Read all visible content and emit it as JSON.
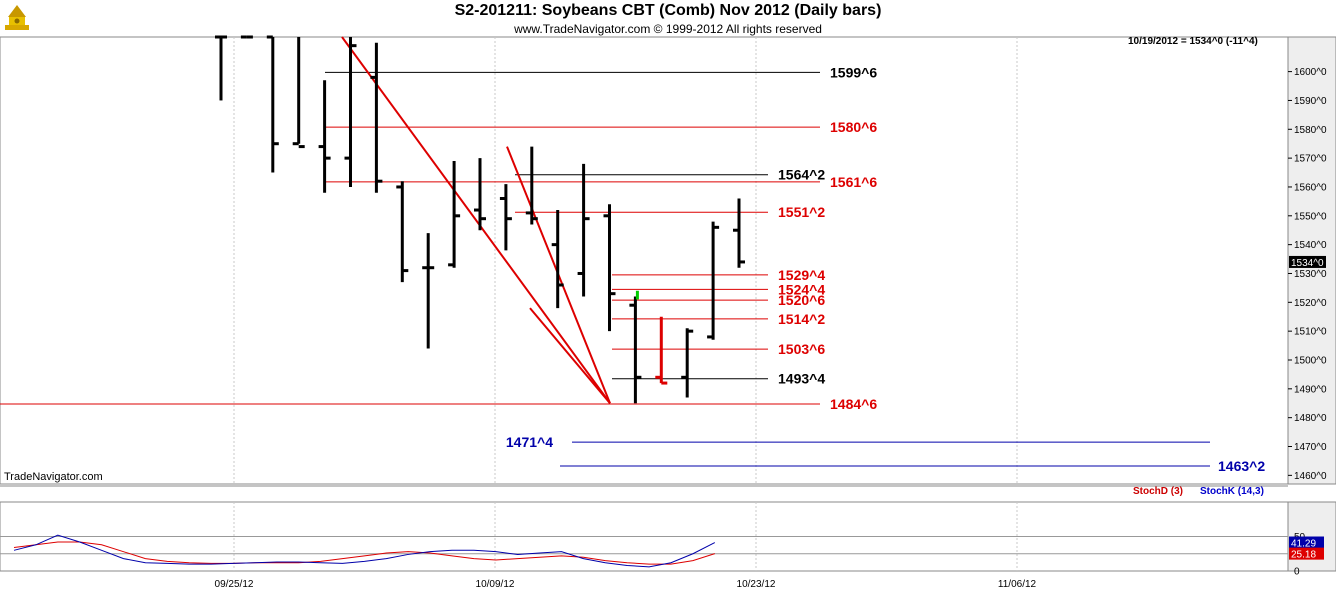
{
  "header": {
    "title": "S2-201211:  Soybeans CBT (Comb) Nov 2012  (Daily bars)",
    "subtitle": "www.TradeNavigator.com © 1999-2012 All rights reserved",
    "brand": "TradeNavigator.com",
    "readout": "10/19/2012 = 1534^0 (-11^4)"
  },
  "colors": {
    "red": "#dd0000",
    "blue": "#0000aa",
    "black": "#000000",
    "grid": "#c8c8c8",
    "axis_bg": "#eeeeee"
  },
  "chart_data": [
    {
      "type": "ohlc",
      "title": "S2-201211:  Soybeans CBT (Comb) Nov 2012  (Daily bars)",
      "x_labels": [
        "09/25/12",
        "10/09/12",
        "10/23/12",
        "11/06/12"
      ],
      "y_tick_labels": [
        "1460^0",
        "1470^0",
        "1480^0",
        "1490^0",
        "1500^0",
        "1510^0",
        "1520^0",
        "1530^0",
        "1540^0",
        "1550^0",
        "1560^0",
        "1570^0",
        "1580^0",
        "1590^0",
        "1600^0"
      ],
      "ylim": [
        1457,
        1612
      ],
      "last_price_label": "1534^0",
      "bars": [
        {
          "high": 1612,
          "low": 1590,
          "open": 1612,
          "close": 1612
        },
        {
          "high": 1612,
          "low": 1612,
          "open": 1612,
          "close": 1612
        },
        {
          "high": 1612,
          "low": 1565,
          "open": 1612,
          "close": 1575
        },
        {
          "high": 1612,
          "low": 1575,
          "open": 1575,
          "close": 1574
        },
        {
          "high": 1597,
          "low": 1558,
          "open": 1574,
          "close": 1570
        },
        {
          "high": 1612,
          "low": 1560,
          "open": 1570,
          "close": 1609
        },
        {
          "high": 1610,
          "low": 1558,
          "open": 1598,
          "close": 1562
        },
        {
          "high": 1562,
          "low": 1527,
          "open": 1560,
          "close": 1531
        },
        {
          "high": 1544,
          "low": 1504,
          "open": 1532,
          "close": 1532
        },
        {
          "high": 1569,
          "low": 1532,
          "open": 1533,
          "close": 1550
        },
        {
          "high": 1570,
          "low": 1545,
          "open": 1552,
          "close": 1549
        },
        {
          "high": 1561,
          "low": 1538,
          "open": 1556,
          "close": 1549
        },
        {
          "high": 1574,
          "low": 1547,
          "open": 1551,
          "close": 1549
        },
        {
          "high": 1552,
          "low": 1518,
          "open": 1540,
          "close": 1526
        },
        {
          "high": 1568,
          "low": 1522,
          "open": 1530,
          "close": 1549
        },
        {
          "high": 1554,
          "low": 1510,
          "open": 1550,
          "close": 1523
        },
        {
          "high": 1522,
          "low": 1485,
          "open": 1519,
          "close": 1494
        },
        {
          "high": 1515,
          "low": 1492,
          "open": 1494,
          "close": 1492
        },
        {
          "high": 1511,
          "low": 1487,
          "open": 1494,
          "close": 1510
        },
        {
          "high": 1548,
          "low": 1507,
          "open": 1508,
          "close": 1546
        },
        {
          "high": 1556,
          "low": 1532,
          "open": 1545,
          "close": 1534
        }
      ],
      "levels": [
        {
          "value": 1599.75,
          "label": "1599^6",
          "color": "black"
        },
        {
          "value": 1580.75,
          "label": "1580^6",
          "color": "red"
        },
        {
          "value": 1564.25,
          "label": "1564^2",
          "color": "black"
        },
        {
          "value": 1561.75,
          "label": "1561^6",
          "color": "red"
        },
        {
          "value": 1551.25,
          "label": "1551^2",
          "color": "red"
        },
        {
          "value": 1529.5,
          "label": "1529^4",
          "color": "red"
        },
        {
          "value": 1524.5,
          "label": "1524^4",
          "color": "red"
        },
        {
          "value": 1520.75,
          "label": "1520^6",
          "color": "red"
        },
        {
          "value": 1514.25,
          "label": "1514^2",
          "color": "red"
        },
        {
          "value": 1503.75,
          "label": "1503^6",
          "color": "red"
        },
        {
          "value": 1493.5,
          "label": "1493^4",
          "color": "black"
        },
        {
          "value": 1484.75,
          "label": "1484^6",
          "color": "red"
        },
        {
          "value": 1471.5,
          "label": "1471^4",
          "color": "blue"
        },
        {
          "value": 1463.25,
          "label": "1463^2",
          "color": "blue"
        }
      ]
    },
    {
      "type": "line",
      "indicator": "Stochastic",
      "series": [
        {
          "name": "StochD (3)",
          "color": "red",
          "values": [
            34,
            38,
            42,
            42,
            38,
            28,
            18,
            14,
            12,
            11,
            11,
            12,
            12,
            12,
            14,
            18,
            22,
            26,
            28,
            26,
            22,
            18,
            16,
            18,
            20,
            22,
            20,
            15,
            12,
            10,
            10,
            15,
            25.18
          ]
        },
        {
          "name": "StochK (14,3)",
          "color": "blue",
          "values": [
            30,
            38,
            52,
            42,
            30,
            18,
            12,
            11,
            10,
            10,
            11,
            12,
            13,
            13,
            12,
            11,
            14,
            18,
            24,
            28,
            30,
            30,
            28,
            24,
            26,
            28,
            18,
            12,
            8,
            6,
            12,
            25,
            41.29
          ]
        }
      ],
      "y_tick_labels": [
        "0",
        "50"
      ],
      "ylim": [
        0,
        100
      ],
      "last_values": {
        "k": "41.29",
        "d": "25.18"
      }
    }
  ]
}
